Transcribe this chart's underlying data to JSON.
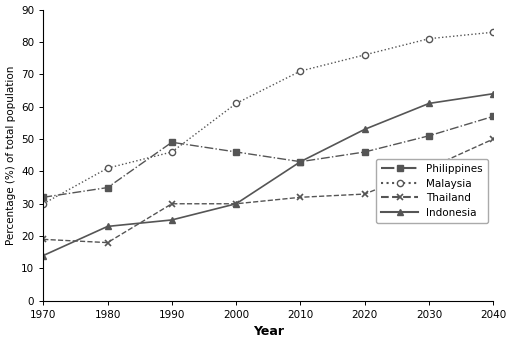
{
  "years": [
    1970,
    1980,
    1990,
    2000,
    2010,
    2020,
    2030,
    2040
  ],
  "philippines": [
    32,
    35,
    49,
    46,
    43,
    46,
    51,
    57
  ],
  "malaysia": [
    30,
    41,
    46,
    61,
    71,
    76,
    81,
    83
  ],
  "thailand": [
    19,
    18,
    30,
    30,
    32,
    33,
    41,
    50
  ],
  "indonesia": [
    14,
    23,
    25,
    30,
    43,
    53,
    61,
    64
  ],
  "xlabel": "Year",
  "ylabel": "Percentage (%) of total population",
  "ylim": [
    0,
    90
  ],
  "xlim": [
    1970,
    2040
  ],
  "yticks": [
    0,
    10,
    20,
    30,
    40,
    50,
    60,
    70,
    80,
    90
  ],
  "xticks": [
    1970,
    1980,
    1990,
    2000,
    2010,
    2020,
    2030,
    2040
  ],
  "color": "#555555",
  "background_color": "#ffffff"
}
